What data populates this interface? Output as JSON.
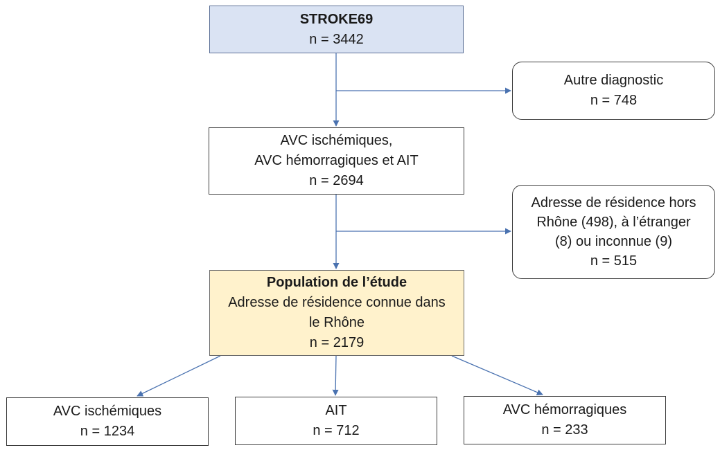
{
  "boxes": {
    "stroke69": {
      "title": "STROKE69",
      "count": "n = 3442"
    },
    "autre_diagnostic": {
      "label": "Autre diagnostic",
      "count": "n = 748"
    },
    "avc_ait": {
      "line1": "AVC ischémiques,",
      "line2": "AVC hémorragiques et AIT",
      "count": "n = 2694"
    },
    "hors_rhone": {
      "line1": "Adresse de résidence hors",
      "line2": "Rhône (498), à l’étranger",
      "line3": "(8) ou inconnue (9)",
      "count": "n = 515"
    },
    "population": {
      "title": "Population de l’étude",
      "line1": "Adresse de résidence connue dans",
      "line2": "le Rhône",
      "count": "n = 2179"
    },
    "avc_ischemiques": {
      "label": "AVC ischémiques",
      "count": "n = 1234"
    },
    "ait": {
      "label": "AIT",
      "count": "n = 712"
    },
    "avc_hemorragiques": {
      "label": "AVC hémorragiques",
      "count": "n = 233"
    }
  },
  "colors": {
    "arrow": "#4a72b0",
    "header_fill": "#dae3f3",
    "study_fill": "#fff2cc"
  }
}
